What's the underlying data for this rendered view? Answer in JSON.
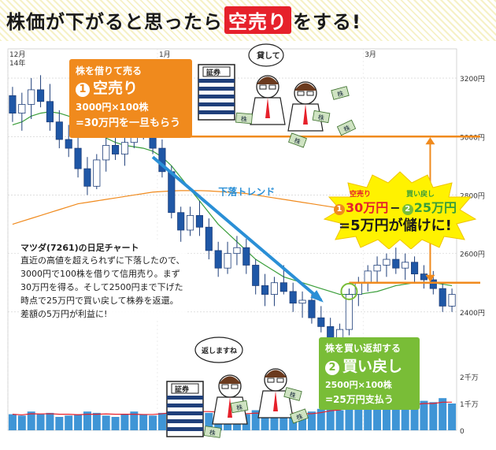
{
  "title": {
    "before": "株価が下がると思ったら",
    "highlight": "空売り",
    "after": "をする!"
  },
  "chart_data": {
    "type": "candlestick",
    "series_name": "マツダ(7261)の日足チャート",
    "ylim": [
      2200,
      3300
    ],
    "yticks": [
      2400,
      2600,
      2800,
      3000,
      3200
    ],
    "ytick_labels": [
      "2400円",
      "2600円",
      "2800円",
      "3000円",
      "3200円"
    ],
    "volume_ticks": [
      "0",
      "1千万",
      "2千万"
    ],
    "month_labels": [
      "12月\n14年",
      "1月",
      "3月"
    ],
    "trend_label": "下落トレンド",
    "sell_price": 3000,
    "buyback_price": 2500,
    "candles": [
      {
        "o": 3140,
        "h": 3170,
        "l": 3050,
        "c": 3080
      },
      {
        "o": 3080,
        "h": 3150,
        "l": 3020,
        "c": 3110
      },
      {
        "o": 3110,
        "h": 3200,
        "l": 3060,
        "c": 3160
      },
      {
        "o": 3160,
        "h": 3210,
        "l": 3100,
        "c": 3120
      },
      {
        "o": 3120,
        "h": 3180,
        "l": 3020,
        "c": 3050
      },
      {
        "o": 3050,
        "h": 3090,
        "l": 2960,
        "c": 2990
      },
      {
        "o": 2990,
        "h": 3040,
        "l": 2930,
        "c": 2960
      },
      {
        "o": 2960,
        "h": 3000,
        "l": 2860,
        "c": 2890
      },
      {
        "o": 2890,
        "h": 2930,
        "l": 2800,
        "c": 2830
      },
      {
        "o": 2830,
        "h": 2940,
        "l": 2820,
        "c": 2920
      },
      {
        "o": 2920,
        "h": 3000,
        "l": 2880,
        "c": 2970
      },
      {
        "o": 2970,
        "h": 3010,
        "l": 2920,
        "c": 2940
      },
      {
        "o": 2940,
        "h": 3000,
        "l": 2900,
        "c": 2980
      },
      {
        "o": 2980,
        "h": 3040,
        "l": 2960,
        "c": 3020
      },
      {
        "o": 3020,
        "h": 3060,
        "l": 2990,
        "c": 3030
      },
      {
        "o": 3030,
        "h": 3040,
        "l": 2940,
        "c": 2960
      },
      {
        "o": 2960,
        "h": 2990,
        "l": 2860,
        "c": 2880
      },
      {
        "o": 2880,
        "h": 2900,
        "l": 2720,
        "c": 2740
      },
      {
        "o": 2740,
        "h": 2760,
        "l": 2640,
        "c": 2680
      },
      {
        "o": 2680,
        "h": 2760,
        "l": 2660,
        "c": 2730
      },
      {
        "o": 2730,
        "h": 2780,
        "l": 2660,
        "c": 2690
      },
      {
        "o": 2690,
        "h": 2720,
        "l": 2580,
        "c": 2610
      },
      {
        "o": 2610,
        "h": 2640,
        "l": 2520,
        "c": 2550
      },
      {
        "o": 2550,
        "h": 2640,
        "l": 2530,
        "c": 2600
      },
      {
        "o": 2600,
        "h": 2660,
        "l": 2560,
        "c": 2620
      },
      {
        "o": 2620,
        "h": 2650,
        "l": 2530,
        "c": 2560
      },
      {
        "o": 2560,
        "h": 2580,
        "l": 2460,
        "c": 2490
      },
      {
        "o": 2490,
        "h": 2530,
        "l": 2420,
        "c": 2460
      },
      {
        "o": 2460,
        "h": 2520,
        "l": 2420,
        "c": 2500
      },
      {
        "o": 2500,
        "h": 2560,
        "l": 2460,
        "c": 2470
      },
      {
        "o": 2470,
        "h": 2500,
        "l": 2400,
        "c": 2430
      },
      {
        "o": 2430,
        "h": 2470,
        "l": 2380,
        "c": 2440
      },
      {
        "o": 2440,
        "h": 2460,
        "l": 2360,
        "c": 2380
      },
      {
        "o": 2380,
        "h": 2420,
        "l": 2330,
        "c": 2350
      },
      {
        "o": 2350,
        "h": 2380,
        "l": 2280,
        "c": 2300
      },
      {
        "o": 2300,
        "h": 2360,
        "l": 2260,
        "c": 2340
      },
      {
        "o": 2340,
        "h": 2480,
        "l": 2320,
        "c": 2460
      },
      {
        "o": 2460,
        "h": 2520,
        "l": 2420,
        "c": 2500
      },
      {
        "o": 2500,
        "h": 2560,
        "l": 2470,
        "c": 2540
      },
      {
        "o": 2540,
        "h": 2590,
        "l": 2500,
        "c": 2560
      },
      {
        "o": 2560,
        "h": 2600,
        "l": 2520,
        "c": 2580
      },
      {
        "o": 2580,
        "h": 2620,
        "l": 2530,
        "c": 2550
      },
      {
        "o": 2550,
        "h": 2600,
        "l": 2510,
        "c": 2570
      },
      {
        "o": 2570,
        "h": 2590,
        "l": 2500,
        "c": 2530
      },
      {
        "o": 2530,
        "h": 2560,
        "l": 2480,
        "c": 2510
      },
      {
        "o": 2510,
        "h": 2540,
        "l": 2460,
        "c": 2480
      },
      {
        "o": 2480,
        "h": 2500,
        "l": 2400,
        "c": 2420
      },
      {
        "o": 2420,
        "h": 2480,
        "l": 2400,
        "c": 2460
      }
    ],
    "ma_short": [
      3040,
      3050,
      3070,
      3080,
      3085,
      3080,
      3070,
      3055,
      3035,
      3015,
      2995,
      2980,
      2970,
      2965,
      2960,
      2950,
      2930,
      2900,
      2860,
      2820,
      2780,
      2740,
      2700,
      2670,
      2640,
      2610,
      2580,
      2560,
      2540,
      2520,
      2510,
      2500,
      2490,
      2480,
      2470,
      2460,
      2460,
      2460,
      2465,
      2470,
      2480,
      2490,
      2495,
      2500,
      2500,
      2500,
      2495,
      2490
    ],
    "ma_long": [
      2700,
      2710,
      2720,
      2730,
      2740,
      2750,
      2760,
      2770,
      2775,
      2780,
      2785,
      2790,
      2795,
      2800,
      2805,
      2810,
      2812,
      2814,
      2815,
      2815,
      2815,
      2814,
      2812,
      2810,
      2808,
      2805,
      2800,
      2795,
      2790,
      2785,
      2780,
      2775,
      2770,
      2765,
      2760,
      2755,
      2750,
      2745,
      2740,
      2735,
      2730,
      2725,
      2720,
      2715,
      2710,
      2705,
      2700,
      2695
    ],
    "volume": [
      0.6,
      0.55,
      0.7,
      0.6,
      0.65,
      0.5,
      0.55,
      0.6,
      0.7,
      0.65,
      0.55,
      0.5,
      0.6,
      0.7,
      0.6,
      0.55,
      0.65,
      0.8,
      0.75,
      0.7,
      0.6,
      0.65,
      0.7,
      0.6,
      0.55,
      0.6,
      0.75,
      0.7,
      0.6,
      0.55,
      0.6,
      0.65,
      0.7,
      0.8,
      0.9,
      0.75,
      1.1,
      0.95,
      1.0,
      0.9,
      1.05,
      0.95,
      1.0,
      0.9,
      1.1,
      1.05,
      1.2,
      1.0
    ]
  },
  "callout_sell": {
    "line1": "株を借りて売る",
    "num": "1",
    "head": "空売り",
    "line2": "3000円×100株",
    "line3": "=30万円を一旦もらう"
  },
  "callout_buy": {
    "line1": "株を買い返却する",
    "num": "2",
    "head": "買い戻し",
    "line2": "2500円×100株",
    "line3": "=25万円支払う"
  },
  "profit": {
    "label1": "空売り",
    "val1": "30万円",
    "minus": "−",
    "label2": "買い戻し",
    "val2": "25万円",
    "result": "=5万円が儲けに!"
  },
  "description": {
    "title": "マツダ(7261)の日足チャート",
    "body": "直近の高値を超えられずに下落したので、3000円で100株を借りて信用売り。まず30万円を得る。そして2500円まで下げた時点で25万円で買い戻して株券を返還。差額の5万円が利益に!"
  },
  "illus": {
    "box_label": "証券",
    "bubble1": "貸して",
    "bubble2": "返しますね",
    "stock_label": "株"
  },
  "colors": {
    "bear": "#1f57a6",
    "bull": "#ffffff",
    "ma_short": "#3a9e3a",
    "ma_long": "#f08a1d",
    "hline": "#f08a1d",
    "arrow": "#2a8fd6",
    "volume": "#3f95d6",
    "vol_line": "#e6212b",
    "burst": "#fff200"
  }
}
